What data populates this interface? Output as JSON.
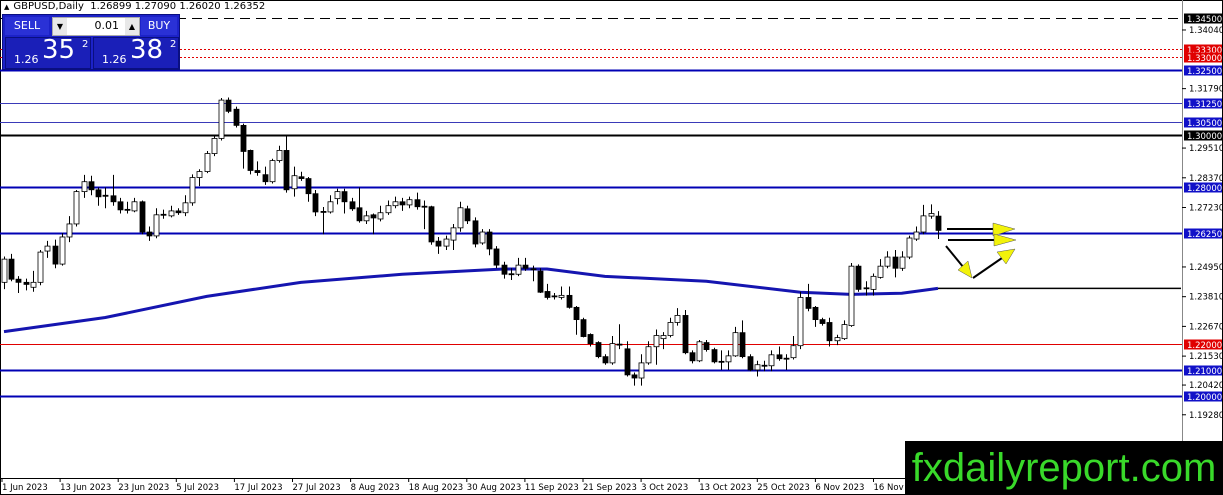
{
  "header": {
    "symbol": "GBPUSD,Daily",
    "ohlc_text": "1.26899 1.27090 1.26020 1.26352"
  },
  "trade_panel": {
    "sell_label": "SELL",
    "buy_label": "BUY",
    "lot": "0.01",
    "sell_prefix": "1.26",
    "sell_big": "35",
    "sell_sup": "2",
    "buy_prefix": "1.26",
    "buy_big": "38",
    "buy_sup": "2"
  },
  "watermark": "fxdailyreport.com",
  "chart_data": {
    "type": "candlestick",
    "title": "GBPUSD,Daily",
    "ylim": [
      1.1683,
      1.349
    ],
    "grid": false,
    "colors": {
      "bull": "#ffffff",
      "bear": "#000000",
      "ma": "#1515b0",
      "blue_level": "#0000b4",
      "red_level": "#e00000",
      "arrow": "#f2f20a"
    },
    "x_tick_labels": [
      "1 Jun 2023",
      "13 Jun 2023",
      "23 Jun 2023",
      "5 Jul 2023",
      "17 Jul 2023",
      "27 Jul 2023",
      "8 Aug 2023",
      "18 Aug 2023",
      "30 Aug 2023",
      "11 Sep 2023",
      "21 Sep 2023",
      "3 Oct 2023",
      "13 Oct 2023",
      "25 Oct 2023",
      "6 Nov 2023",
      "16 Nov 2023"
    ],
    "y_tick_labels": [
      "1.34040",
      "1.31790",
      "1.29510",
      "1.28370",
      "1.27230",
      "1.24950",
      "1.23810",
      "1.22670",
      "1.21530",
      "1.20420",
      "1.19280"
    ],
    "levels": [
      {
        "price": 1.345,
        "label": "1.34500",
        "style": "dashed",
        "color": "#000000"
      },
      {
        "price": 1.333,
        "label": "1.33300",
        "style": "dotted",
        "color": "#e00000"
      },
      {
        "price": 1.33,
        "label": "1.33000",
        "style": "dotted",
        "color": "#e00000"
      },
      {
        "price": 1.325,
        "label": "1.32500",
        "style": "thick",
        "color": "#0000b4"
      },
      {
        "price": 1.3125,
        "label": "1.31250",
        "style": "thin",
        "color": "#3a3ab8"
      },
      {
        "price": 1.305,
        "label": "1.30500",
        "style": "thin",
        "color": "#3a3ab8"
      },
      {
        "price": 1.3,
        "label": "1.30000",
        "style": "thick",
        "color": "#000000"
      },
      {
        "price": 1.28,
        "label": "1.28000",
        "style": "thick",
        "color": "#0000b4"
      },
      {
        "price": 1.2625,
        "label": "1.26250",
        "style": "thick",
        "color": "#0000b4"
      },
      {
        "price": 1.22,
        "label": "1.22000",
        "style": "thin",
        "color": "#e00000"
      },
      {
        "price": 1.21,
        "label": "1.21000",
        "style": "thick",
        "color": "#0000b4"
      },
      {
        "price": 1.2,
        "label": "1.20000",
        "style": "thick",
        "color": "#0000b4"
      }
    ],
    "segment_level": 1.2413,
    "moving_average": [
      [
        0,
        1.2247
      ],
      [
        14,
        1.2301
      ],
      [
        28,
        1.2382
      ],
      [
        41,
        1.2436
      ],
      [
        55,
        1.2467
      ],
      [
        69,
        1.2487
      ],
      [
        75,
        1.2487
      ],
      [
        83,
        1.2459
      ],
      [
        97,
        1.244
      ],
      [
        110,
        1.2398
      ],
      [
        117,
        1.239
      ],
      [
        124,
        1.2394
      ],
      [
        129,
        1.2413
      ]
    ],
    "ohlc": [
      [
        1.2436,
        1.2535,
        1.241,
        1.2525
      ],
      [
        1.2525,
        1.2545,
        1.244,
        1.2448
      ],
      [
        1.2448,
        1.246,
        1.2395,
        1.2436
      ],
      [
        1.2436,
        1.245,
        1.2405,
        1.2428
      ],
      [
        1.2417,
        1.248,
        1.24,
        1.2436
      ],
      [
        1.2436,
        1.256,
        1.2425,
        1.2552
      ],
      [
        1.2556,
        1.2595,
        1.253,
        1.2575
      ],
      [
        1.2575,
        1.26,
        1.249,
        1.2506
      ],
      [
        1.2506,
        1.2625,
        1.25,
        1.261
      ],
      [
        1.261,
        1.269,
        1.259,
        1.266
      ],
      [
        1.266,
        1.279,
        1.265,
        1.2784
      ],
      [
        1.2784,
        1.2848,
        1.276,
        1.2822
      ],
      [
        1.2822,
        1.2845,
        1.277,
        1.2791
      ],
      [
        1.2791,
        1.28,
        1.273,
        1.2764
      ],
      [
        1.277,
        1.28,
        1.272,
        1.2766
      ],
      [
        1.2768,
        1.2848,
        1.273,
        1.2745
      ],
      [
        1.2745,
        1.276,
        1.27,
        1.2714
      ],
      [
        1.2716,
        1.2745,
        1.27,
        1.2714
      ],
      [
        1.271,
        1.276,
        1.2705,
        1.2745
      ],
      [
        1.2745,
        1.275,
        1.262,
        1.2629
      ],
      [
        1.2629,
        1.265,
        1.2595,
        1.2614
      ],
      [
        1.2614,
        1.272,
        1.2605,
        1.2695
      ],
      [
        1.2697,
        1.2715,
        1.268,
        1.2695
      ],
      [
        1.2691,
        1.273,
        1.2685,
        1.271
      ],
      [
        1.271,
        1.272,
        1.2695,
        1.2703
      ],
      [
        1.2703,
        1.277,
        1.269,
        1.2741
      ],
      [
        1.2741,
        1.285,
        1.273,
        1.2838
      ],
      [
        1.2838,
        1.287,
        1.2805,
        1.2861
      ],
      [
        1.2861,
        1.294,
        1.2855,
        1.293
      ],
      [
        1.293,
        1.3,
        1.292,
        1.2988
      ],
      [
        1.2988,
        1.3143,
        1.298,
        1.3135
      ],
      [
        1.3135,
        1.3145,
        1.3085,
        1.3092
      ],
      [
        1.31,
        1.311,
        1.303,
        1.3038
      ],
      [
        1.3038,
        1.3045,
        1.2872,
        1.2938
      ],
      [
        1.2942,
        1.2945,
        1.285,
        1.2865
      ],
      [
        1.2865,
        1.29,
        1.2845,
        1.2857
      ],
      [
        1.2849,
        1.288,
        1.281,
        1.2822
      ],
      [
        1.2822,
        1.291,
        1.2815,
        1.2903
      ],
      [
        1.2903,
        1.296,
        1.2895,
        1.2942
      ],
      [
        1.2942,
        1.3,
        1.278,
        1.2791
      ],
      [
        1.2795,
        1.288,
        1.2765,
        1.2845
      ],
      [
        1.2841,
        1.286,
        1.2825,
        1.2834
      ],
      [
        1.2834,
        1.284,
        1.2745,
        1.2776
      ],
      [
        1.2776,
        1.279,
        1.269,
        1.2706
      ],
      [
        1.2708,
        1.2725,
        1.262,
        1.2706
      ],
      [
        1.2706,
        1.277,
        1.27,
        1.2745
      ],
      [
        1.2757,
        1.2795,
        1.2735,
        1.2784
      ],
      [
        1.2784,
        1.2795,
        1.27,
        1.2745
      ],
      [
        1.2745,
        1.276,
        1.271,
        1.2718
      ],
      [
        1.2722,
        1.28,
        1.2665,
        1.2672
      ],
      [
        1.2672,
        1.271,
        1.266,
        1.2691
      ],
      [
        1.2695,
        1.27,
        1.262,
        1.2683
      ],
      [
        1.2679,
        1.273,
        1.267,
        1.2703
      ],
      [
        1.2703,
        1.275,
        1.2695,
        1.273
      ],
      [
        1.273,
        1.2765,
        1.272,
        1.2745
      ],
      [
        1.2745,
        1.276,
        1.271,
        1.2733
      ],
      [
        1.2733,
        1.2765,
        1.272,
        1.2753
      ],
      [
        1.2753,
        1.278,
        1.2715,
        1.2726
      ],
      [
        1.2728,
        1.275,
        1.264,
        1.2726
      ],
      [
        1.2726,
        1.273,
        1.258,
        1.2591
      ],
      [
        1.2594,
        1.261,
        1.2545,
        1.2575
      ],
      [
        1.2575,
        1.2615,
        1.256,
        1.2602
      ],
      [
        1.2598,
        1.266,
        1.256,
        1.2645
      ],
      [
        1.2645,
        1.2745,
        1.263,
        1.2722
      ],
      [
        1.2718,
        1.273,
        1.266,
        1.2672
      ],
      [
        1.2672,
        1.2685,
        1.257,
        1.2583
      ],
      [
        1.2587,
        1.264,
        1.258,
        1.2629
      ],
      [
        1.2629,
        1.264,
        1.254,
        1.2564
      ],
      [
        1.2564,
        1.2575,
        1.249,
        1.2502
      ],
      [
        1.2502,
        1.2515,
        1.245,
        1.2467
      ],
      [
        1.2469,
        1.249,
        1.2445,
        1.2467
      ],
      [
        1.2467,
        1.253,
        1.246,
        1.2502
      ],
      [
        1.2502,
        1.253,
        1.248,
        1.249
      ],
      [
        1.2488,
        1.25,
        1.244,
        1.2486
      ],
      [
        1.2479,
        1.249,
        1.2395,
        1.2398
      ],
      [
        1.2401,
        1.243,
        1.237,
        1.2378
      ],
      [
        1.2384,
        1.2395,
        1.237,
        1.2382
      ],
      [
        1.2378,
        1.242,
        1.237,
        1.2386
      ],
      [
        1.2386,
        1.242,
        1.2335,
        1.234
      ],
      [
        1.234,
        1.2345,
        1.2235,
        1.2293
      ],
      [
        1.2293,
        1.23,
        1.2225,
        1.2228
      ],
      [
        1.2236,
        1.224,
        1.219,
        1.2201
      ],
      [
        1.2205,
        1.221,
        1.2145,
        1.2151
      ],
      [
        1.2151,
        1.216,
        1.212,
        1.2127
      ],
      [
        1.2127,
        1.223,
        1.212,
        1.2201
      ],
      [
        1.2199,
        1.2275,
        1.218,
        1.2197
      ],
      [
        1.2181,
        1.221,
        1.2075,
        1.2081
      ],
      [
        1.2081,
        1.209,
        1.204,
        1.2069
      ],
      [
        1.2069,
        1.216,
        1.204,
        1.2127
      ],
      [
        1.2127,
        1.221,
        1.212,
        1.2189
      ],
      [
        1.2189,
        1.2255,
        1.212,
        1.2232
      ],
      [
        1.222,
        1.2245,
        1.218,
        1.2232
      ],
      [
        1.2232,
        1.23,
        1.2225,
        1.2282
      ],
      [
        1.2282,
        1.2337,
        1.227,
        1.2309
      ],
      [
        1.2309,
        1.233,
        1.216,
        1.2166
      ],
      [
        1.2166,
        1.2175,
        1.2125,
        1.2135
      ],
      [
        1.2135,
        1.2215,
        1.213,
        1.2208
      ],
      [
        1.2205,
        1.2215,
        1.217,
        1.2178
      ],
      [
        1.2178,
        1.2185,
        1.2125,
        1.2131
      ],
      [
        1.2133,
        1.2175,
        1.21,
        1.2131
      ],
      [
        1.2131,
        1.2175,
        1.21,
        1.2154
      ],
      [
        1.2154,
        1.2265,
        1.215,
        1.2243
      ],
      [
        1.2243,
        1.229,
        1.2145,
        1.2151
      ],
      [
        1.2151,
        1.216,
        1.2095,
        1.21
      ],
      [
        1.21,
        1.2135,
        1.2075,
        1.212
      ],
      [
        1.2118,
        1.2135,
        1.2095,
        1.2116
      ],
      [
        1.2116,
        1.2175,
        1.2095,
        1.2158
      ],
      [
        1.2158,
        1.219,
        1.2135,
        1.2143
      ],
      [
        1.2145,
        1.216,
        1.21,
        1.2143
      ],
      [
        1.2147,
        1.223,
        1.214,
        1.2193
      ],
      [
        1.2193,
        1.24,
        1.218,
        1.2378
      ],
      [
        1.2378,
        1.243,
        1.2325,
        1.2336
      ],
      [
        1.234,
        1.2345,
        1.2265,
        1.2293
      ],
      [
        1.2293,
        1.23,
        1.227,
        1.2278
      ],
      [
        1.2282,
        1.23,
        1.219,
        1.2212
      ],
      [
        1.2212,
        1.2235,
        1.2195,
        1.2224
      ],
      [
        1.222,
        1.229,
        1.2215,
        1.2274
      ],
      [
        1.227,
        1.251,
        1.2265,
        1.2498
      ],
      [
        1.2498,
        1.2505,
        1.24,
        1.2409
      ],
      [
        1.2415,
        1.244,
        1.2385,
        1.2413
      ],
      [
        1.2409,
        1.247,
        1.2385,
        1.2459
      ],
      [
        1.2455,
        1.2525,
        1.245,
        1.2498
      ],
      [
        1.2498,
        1.2555,
        1.249,
        1.2533
      ],
      [
        1.2533,
        1.256,
        1.2455,
        1.249
      ],
      [
        1.249,
        1.2555,
        1.248,
        1.2533
      ],
      [
        1.2533,
        1.2615,
        1.2525,
        1.2606
      ],
      [
        1.2602,
        1.265,
        1.2595,
        1.2629
      ],
      [
        1.2629,
        1.2733,
        1.262,
        1.2691
      ],
      [
        1.269,
        1.2735,
        1.268,
        1.27
      ],
      [
        1.26899,
        1.2709,
        1.2602,
        1.26352
      ]
    ]
  }
}
